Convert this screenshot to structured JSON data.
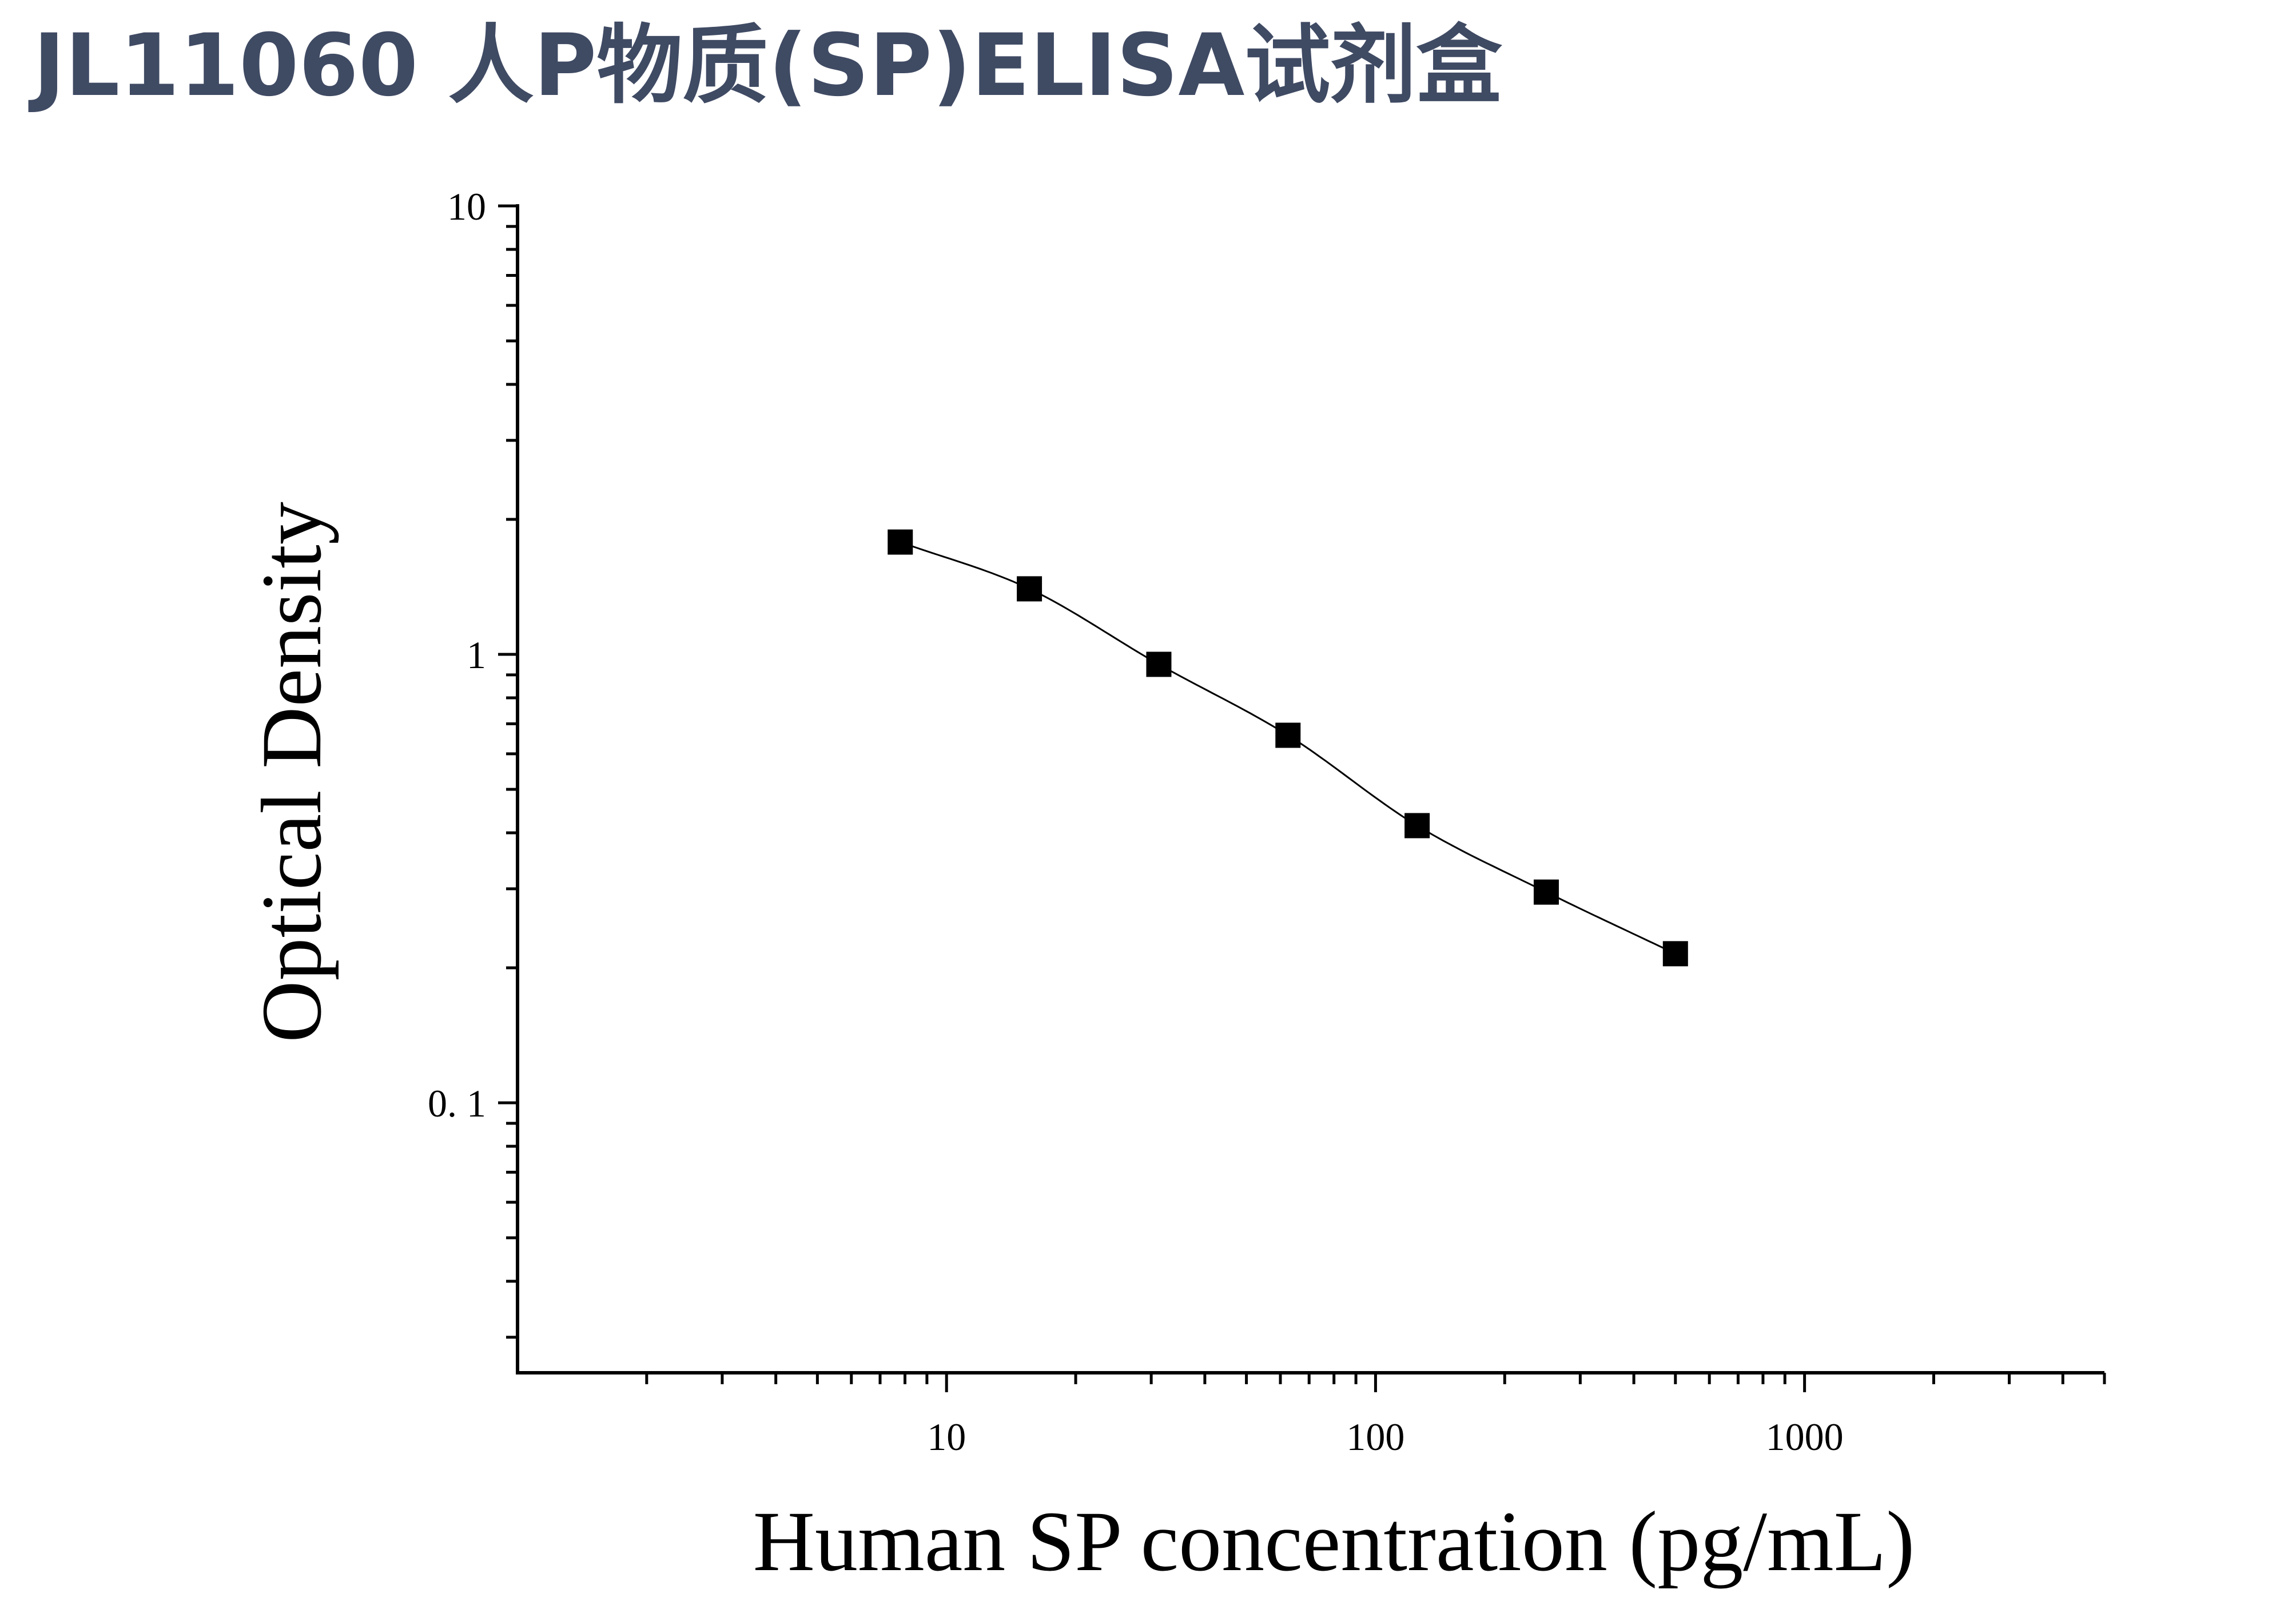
{
  "page": {
    "title": "JL11060 人P物质(SP)ELISA试剂盒"
  },
  "chart_data": {
    "type": "scatter",
    "xlabel": "Human SP concentration (pg/mL)",
    "ylabel": "Optical Density",
    "xscale": "log",
    "yscale": "log",
    "xlim": [
      1,
      5000
    ],
    "ylim": [
      0.025,
      10
    ],
    "xticks": [
      {
        "value": 10,
        "label": "10"
      },
      {
        "value": 100,
        "label": "100"
      },
      {
        "value": 1000,
        "label": "1000"
      }
    ],
    "yticks": [
      {
        "value": 0.1,
        "label": "0. 1"
      },
      {
        "value": 1,
        "label": "1"
      },
      {
        "value": 10,
        "label": "10"
      }
    ],
    "grid": false,
    "series": [
      {
        "marker": "square",
        "fit": "smooth curve",
        "color": "#000000",
        "x": [
          7.8,
          15.6,
          31.25,
          62.5,
          125,
          250,
          500
        ],
        "y": [
          1.78,
          1.4,
          0.95,
          0.66,
          0.415,
          0.295,
          0.215
        ]
      }
    ]
  }
}
